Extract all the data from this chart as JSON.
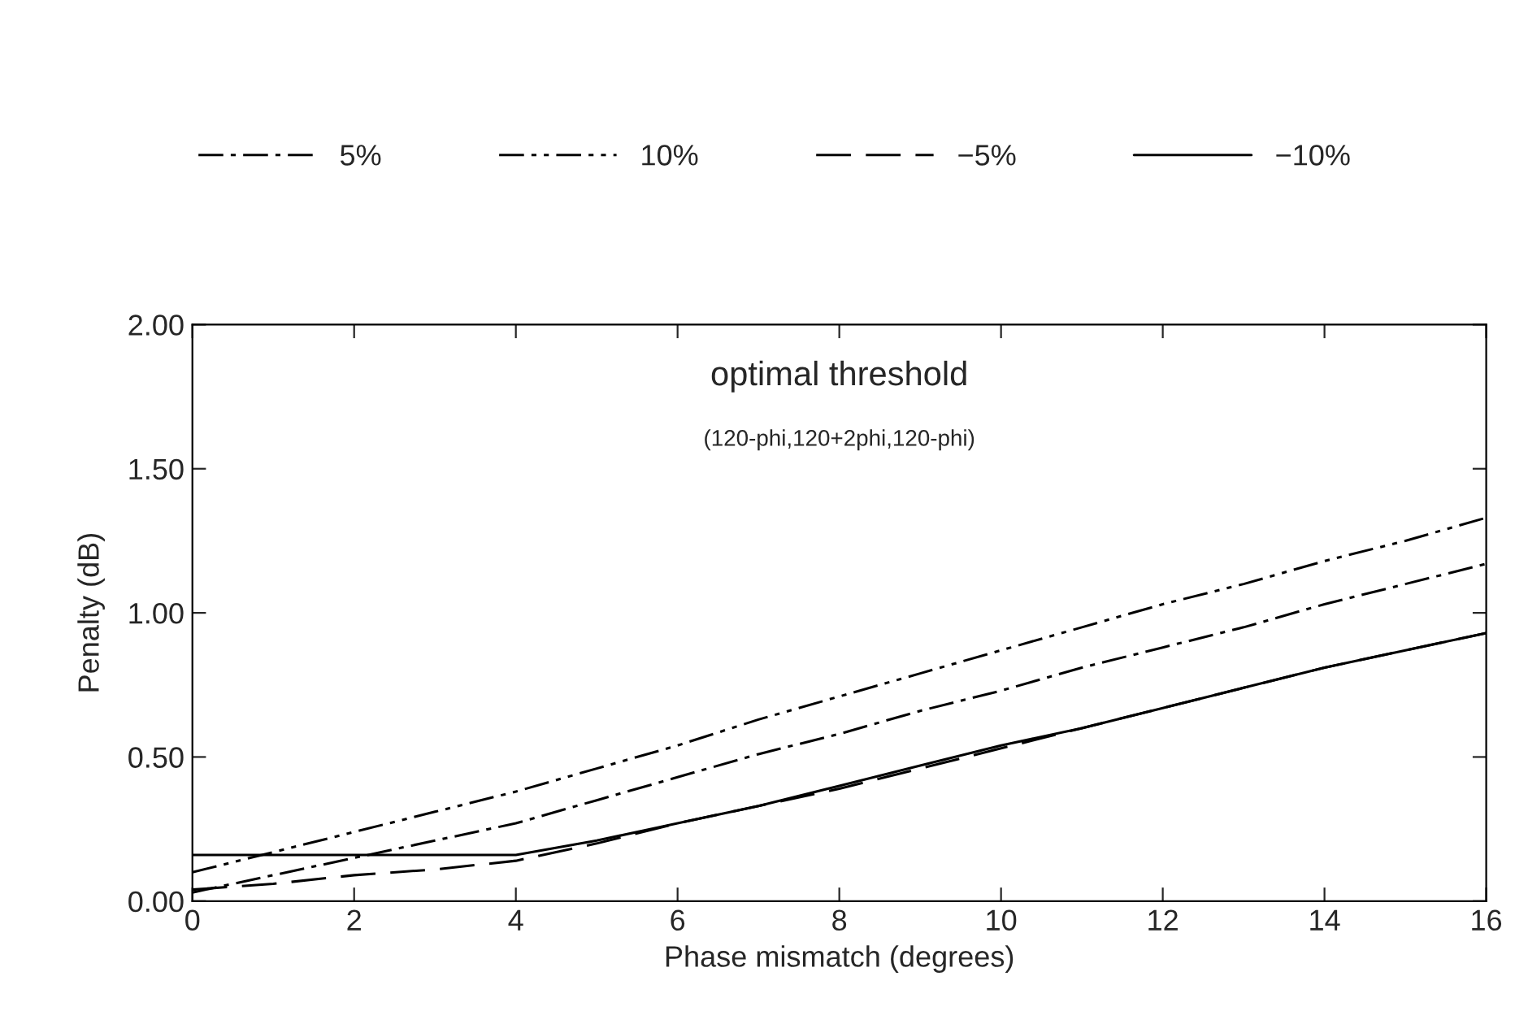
{
  "chart_data": {
    "type": "line",
    "xlabel": "Phase mismatch (degrees)",
    "ylabel": "Penalty (dB)",
    "annotations": [
      "optimal threshold",
      "(120-phi,120+2phi,120-phi)"
    ],
    "xlim": [
      0,
      16
    ],
    "xticks": [
      0,
      2,
      4,
      6,
      8,
      10,
      12,
      14,
      16
    ],
    "ylim": [
      0,
      2
    ],
    "yticks": [
      {
        "value": 0,
        "label": "0.00"
      },
      {
        "value": 0.5,
        "label": "0.50"
      },
      {
        "value": 1,
        "label": "1.00"
      },
      {
        "value": 1.5,
        "label": "1.50"
      },
      {
        "value": 2,
        "label": "2.00"
      }
    ],
    "x": [
      0,
      1,
      2,
      3,
      4,
      5,
      6,
      7,
      8,
      9,
      10,
      11,
      12,
      13,
      14,
      15,
      16
    ],
    "legend": "top",
    "grid": false,
    "series": [
      {
        "name": "5%",
        "color": "#000000",
        "line_style": "dashed",
        "values": [
          0.03,
          0.09,
          0.15,
          0.21,
          0.27,
          0.35,
          0.43,
          0.51,
          0.58,
          0.66,
          0.73,
          0.81,
          0.88,
          0.95,
          1.03,
          1.1,
          1.17
        ]
      },
      {
        "name": "10%",
        "color": "#000000",
        "line_style": "dashed",
        "values": [
          0.1,
          0.17,
          0.24,
          0.31,
          0.38,
          0.46,
          0.54,
          0.63,
          0.71,
          0.79,
          0.87,
          0.95,
          1.03,
          1.1,
          1.18,
          1.25,
          1.33
        ]
      },
      {
        "name": "−5%",
        "color": "#000000",
        "line_style": "dashed",
        "values": [
          0.04,
          0.06,
          0.09,
          0.11,
          0.14,
          0.2,
          0.27,
          0.33,
          0.39,
          0.46,
          0.53,
          0.6,
          0.67,
          0.74,
          0.81,
          0.87,
          0.93
        ]
      },
      {
        "name": "−10%",
        "color": "#000000",
        "line_style": "solid",
        "values": [
          0.16,
          0.16,
          0.16,
          0.16,
          0.16,
          0.21,
          0.27,
          0.33,
          0.4,
          0.47,
          0.54,
          0.6,
          0.67,
          0.74,
          0.81,
          0.87,
          0.93
        ]
      }
    ]
  }
}
